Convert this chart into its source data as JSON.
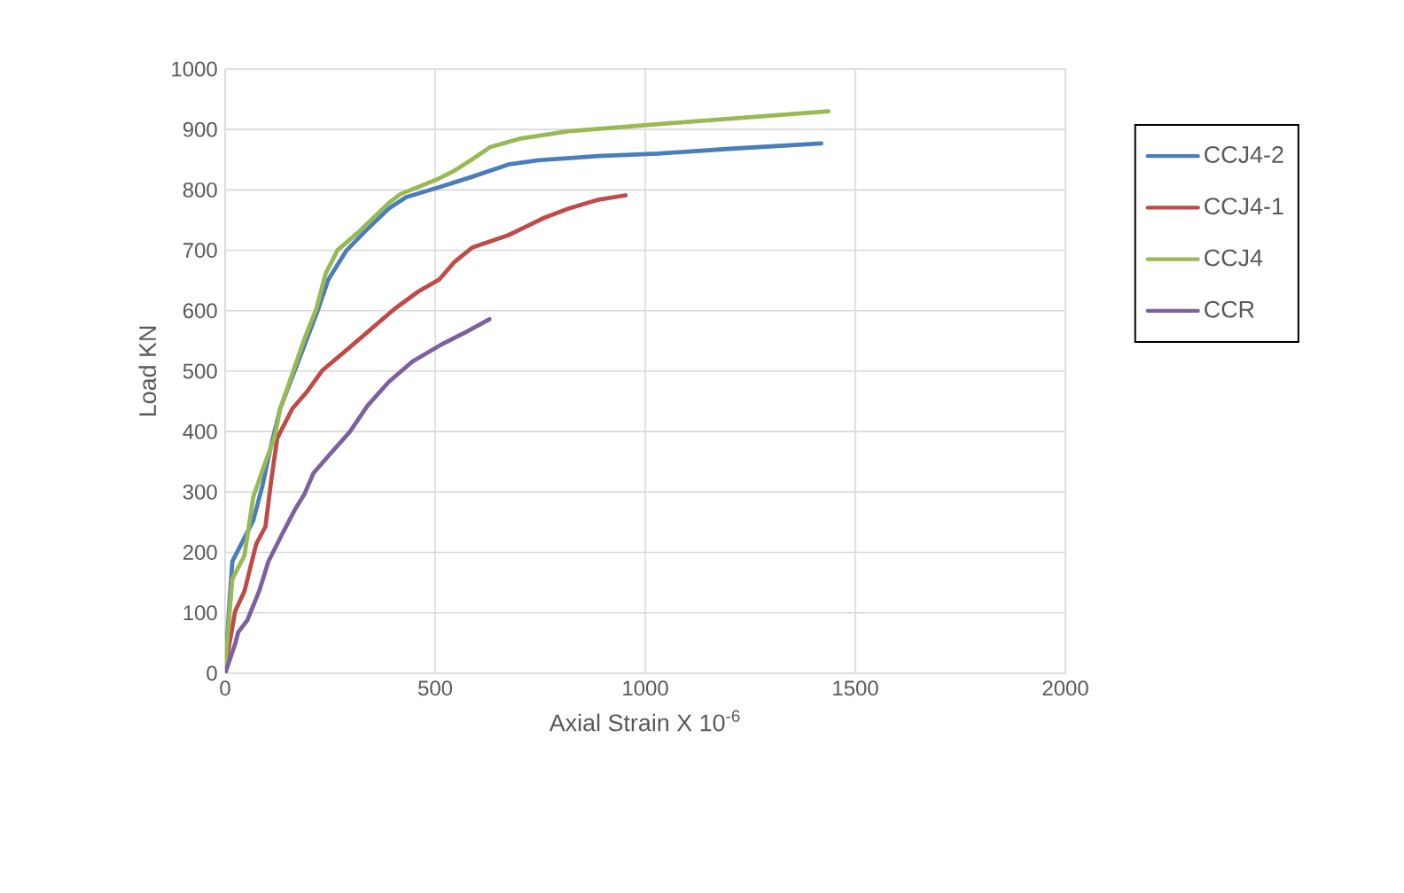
{
  "chart_data": {
    "type": "line",
    "xlabel": "Axial Strain X 10$^{-6}$",
    "ylabel": "Load KN",
    "xlim": [
      0,
      2000
    ],
    "ylim": [
      0,
      1000
    ],
    "xticks": [
      0,
      500,
      1000,
      1500,
      2000
    ],
    "yticks": [
      0,
      100,
      200,
      300,
      400,
      500,
      600,
      700,
      800,
      900,
      1000
    ],
    "grid": true,
    "legend": "right",
    "series": [
      {
        "name": "CCJ4-2",
        "color": "#4a7ebb",
        "x": [
          0,
          17,
          67,
          89,
          110,
          131,
          174,
          217,
          246,
          289,
          331,
          389,
          431,
          503,
          589,
          674,
          746,
          889,
          1030,
          1200,
          1419
        ],
        "values": [
          10,
          185,
          253,
          311,
          379,
          438,
          516,
          594,
          652,
          700,
          730,
          769,
          788,
          803,
          822,
          842,
          849,
          856,
          860,
          868,
          877
        ]
      },
      {
        "name": "CCJ4-1",
        "color": "#be4b48",
        "x": [
          0,
          24,
          46,
          74,
          96,
          110,
          124,
          160,
          196,
          231,
          289,
          346,
          403,
          460,
          510,
          546,
          589,
          674,
          760,
          817,
          889,
          953
        ],
        "values": [
          10,
          103,
          136,
          214,
          243,
          321,
          389,
          438,
          467,
          501,
          535,
          569,
          603,
          632,
          652,
          681,
          705,
          725,
          754,
          769,
          784,
          791
        ]
      },
      {
        "name": "CCJ4",
        "color": "#98b954",
        "x": [
          0,
          17,
          46,
          67,
          96,
          117,
          131,
          160,
          189,
          217,
          239,
          267,
          317,
          389,
          417,
          503,
          546,
          589,
          631,
          703,
          817,
          1031,
          1436
        ],
        "values": [
          10,
          156,
          195,
          292,
          350,
          389,
          438,
          496,
          554,
          603,
          661,
          700,
          730,
          778,
          793,
          817,
          832,
          851,
          871,
          885,
          897,
          909,
          930
        ]
      },
      {
        "name": "CCR",
        "color": "#7d60a0",
        "x": [
          0,
          24,
          31,
          53,
          81,
          103,
          131,
          167,
          189,
          210,
          246,
          296,
          339,
          389,
          446,
          517,
          574,
          629
        ],
        "values": [
          0,
          49,
          68,
          88,
          136,
          185,
          224,
          272,
          297,
          331,
          360,
          399,
          443,
          482,
          516,
          545,
          565,
          586
        ]
      }
    ]
  }
}
